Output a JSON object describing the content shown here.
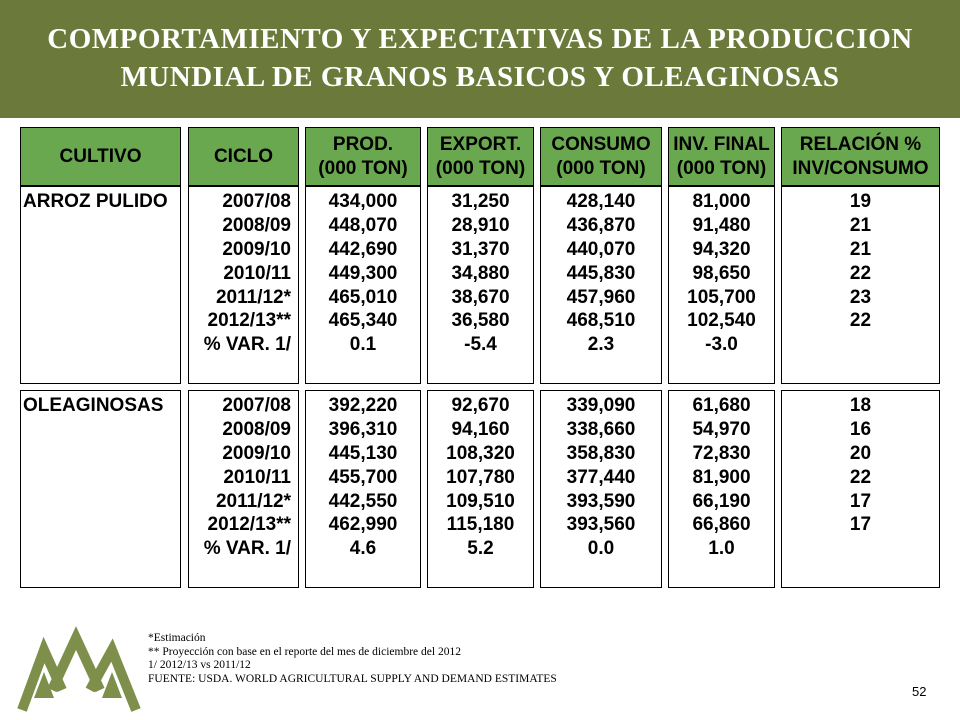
{
  "title": {
    "line1": "COMPORTAMIENTO Y EXPECTATIVAS DE LA PRODUCCION",
    "line2": "MUNDIAL DE GRANOS BASICOS Y OLEAGINOSAS"
  },
  "headers": [
    "CULTIVO",
    "CICLO",
    "PROD.\n(000 TON)",
    "EXPORT.\n(000 TON)",
    "CONSUMO\n(000 TON)",
    "INV. FINAL\n(000 TON)",
    "RELACIÓN %\nINV/CONSUMO"
  ],
  "groups": [
    {
      "crop": "ARROZ PULIDO",
      "cycles": [
        "2007/08",
        "2008/09",
        "2009/10",
        "2010/11",
        "2011/12*",
        "2012/13**",
        "% VAR. 1/"
      ],
      "prod": [
        "434,000",
        "448,070",
        "442,690",
        "449,300",
        "465,010",
        "465,340",
        "0.1"
      ],
      "export": [
        "31,250",
        "28,910",
        "31,370",
        "34,880",
        "38,670",
        "36,580",
        "-5.4"
      ],
      "consumo": [
        "428,140",
        "436,870",
        "440,070",
        "445,830",
        "457,960",
        "468,510",
        "2.3"
      ],
      "inv_final": [
        "81,000",
        "91,480",
        "94,320",
        "98,650",
        "105,700",
        "102,540",
        "-3.0"
      ],
      "relacion": [
        "19",
        "21",
        "21",
        "22",
        "23",
        "22",
        ""
      ]
    },
    {
      "crop": "OLEAGINOSAS",
      "cycles": [
        "2007/08",
        "2008/09",
        "2009/10",
        "2010/11",
        "2011/12*",
        "2012/13**",
        "% VAR. 1/"
      ],
      "prod": [
        "392,220",
        "396,310",
        "445,130",
        "455,700",
        "442,550",
        "462,990",
        "4.6"
      ],
      "export": [
        "92,670",
        "94,160",
        "108,320",
        "107,780",
        "109,510",
        "115,180",
        "5.2"
      ],
      "consumo": [
        "339,090",
        "338,660",
        "358,830",
        "377,440",
        "393,590",
        "393,560",
        "0.0"
      ],
      "inv_final": [
        "61,680",
        "54,970",
        "72,830",
        "81,900",
        "66,190",
        "66,860",
        "1.0"
      ],
      "relacion": [
        "18",
        "16",
        "20",
        "22",
        "17",
        "17",
        ""
      ]
    }
  ],
  "footnotes": [
    "*Estimación",
    "** Proyección con base en el reporte  del mes de diciembre del 2012",
    "1/ 2012/13 vs 2011/12",
    "FUENTE: USDA. WORLD AGRICULTURAL SUPPLY AND DEMAND ESTIMATES"
  ],
  "page_number": "52",
  "colors": {
    "banner": "#6b7a3a",
    "header_fill": "#6aa84f",
    "logo": "#7d8f4a"
  }
}
